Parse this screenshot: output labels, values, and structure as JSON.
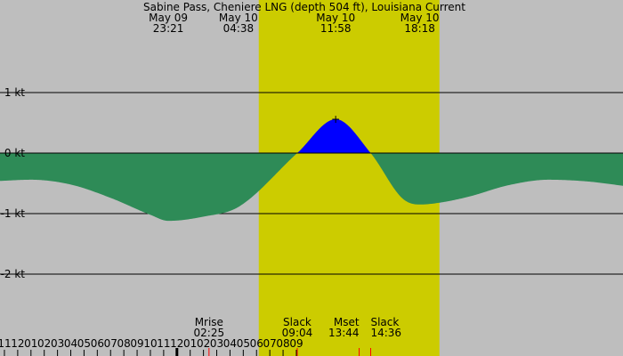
{
  "chart_data": {
    "type": "area",
    "title": "Sabine Pass, Cheniere LNG (depth 504 ft), Louisiana Current",
    "xlabel": "",
    "ylabel": "",
    "x_unit": "hours",
    "xlim": [
      "2024-05-09 10:40",
      "2024-05-11 09:37"
    ],
    "ylim": [
      -2.92,
      1.4
    ],
    "y_ticks": [
      {
        "value": 1,
        "label": "1 kt"
      },
      {
        "value": 0,
        "label": "0 kt"
      },
      {
        "value": -1,
        "label": "-1 kt"
      },
      {
        "value": -2,
        "label": "-2 kt"
      }
    ],
    "grid": "horizontal",
    "daylight": {
      "start": "2024-05-10 06:10",
      "end": "2024-05-10 19:47"
    },
    "events_top": [
      {
        "date": "May 09",
        "time": "23:21"
      },
      {
        "date": "May 10",
        "time": "04:38"
      },
      {
        "date": "May 10",
        "time": "11:58"
      },
      {
        "date": "May 10",
        "time": "18:18"
      }
    ],
    "events_bottom": [
      {
        "time_value": "2024-05-10 02:25",
        "label": "Mrise",
        "time": "02:25"
      },
      {
        "time_value": "2024-05-10 09:04",
        "label": "Slack",
        "time": "09:04"
      },
      {
        "time_value": "2024-05-10 13:44",
        "label": "Mset",
        "time": "13:44"
      },
      {
        "time_value": "2024-05-10 14:36",
        "label": "Slack",
        "time": "14:36"
      }
    ],
    "red_ticks": [
      "2024-05-10 02:25",
      "2024-05-10 09:04",
      "2024-05-10 13:44",
      "2024-05-10 14:36"
    ],
    "black_ticks": [
      "2024-05-10 00:00"
    ],
    "x_tick_labels": [
      "11",
      "12",
      "01",
      "02",
      "03",
      "04",
      "05",
      "06",
      "07",
      "08",
      "09",
      "10",
      "11",
      "12",
      "01",
      "02",
      "03",
      "04",
      "05",
      "06",
      "07",
      "08",
      "09"
    ],
    "x_tick_times": [
      "2024-05-09 11:00",
      "2024-05-09 12:00",
      "2024-05-09 13:00",
      "2024-05-09 14:00",
      "2024-05-09 15:00",
      "2024-05-09 16:00",
      "2024-05-09 17:00",
      "2024-05-09 18:00",
      "2024-05-09 19:00",
      "2024-05-09 20:00",
      "2024-05-09 21:00",
      "2024-05-09 22:00",
      "2024-05-09 23:00",
      "2024-05-10 00:00",
      "2024-05-10 01:00",
      "2024-05-10 02:00",
      "2024-05-10 03:00",
      "2024-05-10 04:00",
      "2024-05-10 05:00",
      "2024-05-10 06:00",
      "2024-05-10 07:00",
      "2024-05-10 08:00",
      "2024-05-10 09:00"
    ],
    "series": [
      {
        "type": "current",
        "x": [
          "2024-05-09 10:40",
          "2024-05-09 13:00",
          "2024-05-09 16:00",
          "2024-05-09 19:00",
          "2024-05-09 22:00",
          "2024-05-09 23:21",
          "2024-05-10 02:00",
          "2024-05-10 04:38",
          "2024-05-10 09:04",
          "2024-05-10 11:58",
          "2024-05-10 14:36",
          "2024-05-10 17:00",
          "2024-05-10 18:18",
          "2024-05-10 19:47",
          "2024-05-10 22:00",
          "2024-05-11 01:00",
          "2024-05-11 04:00",
          "2024-05-11 07:00",
          "2024-05-11 09:37"
        ],
        "values": [
          -0.46,
          -0.44,
          -0.52,
          -0.74,
          -1.02,
          -1.12,
          -1.05,
          -0.89,
          0.0,
          0.56,
          0.0,
          -0.75,
          -0.85,
          -0.82,
          -0.72,
          -0.53,
          -0.44,
          -0.47,
          -0.54
        ]
      }
    ],
    "markers": [
      {
        "time_value": "2024-05-10 11:58",
        "value": 0.56,
        "symbol": "+"
      }
    ],
    "colors": {
      "background": "#bebebe",
      "daylight": "#cccc00",
      "flood": "#0000ff",
      "ebb": "#2e8b57",
      "red_tick": "#ff0000"
    }
  }
}
